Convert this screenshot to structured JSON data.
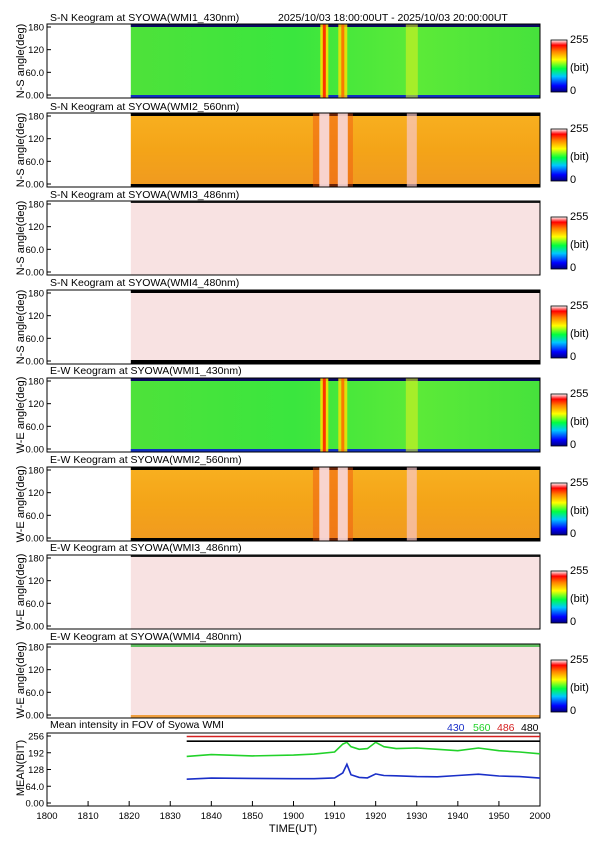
{
  "header": {
    "time_range": "2025/10/03 18:00:00UT - 2025/10/03 20:00:00UT"
  },
  "panels": [
    {
      "title": "S-N Keogram at SYOWA(WMI1_430nm)",
      "ylabel": "N-S angle(deg)",
      "style": "green"
    },
    {
      "title": "S-N Keogram at SYOWA(WMI2_560nm)",
      "ylabel": "N-S angle(deg)",
      "style": "orange"
    },
    {
      "title": "S-N Keogram at SYOWA(WMI3_486nm)",
      "ylabel": "N-S angle(deg)",
      "style": "pale"
    },
    {
      "title": "S-N Keogram at SYOWA(WMI4_480nm)",
      "ylabel": "N-S angle(deg)",
      "style": "pale-dark"
    },
    {
      "title": "E-W Keogram at SYOWA(WMI1_430nm)",
      "ylabel": "W-E angle(deg)",
      "style": "green"
    },
    {
      "title": "E-W Keogram at SYOWA(WMI2_560nm)",
      "ylabel": "W-E angle(deg)",
      "style": "orange"
    },
    {
      "title": "E-W Keogram at SYOWA(WMI3_486nm)",
      "ylabel": "W-E angle(deg)",
      "style": "pale"
    },
    {
      "title": "E-W Keogram at SYOWA(WMI4_480nm)",
      "ylabel": "W-E angle(deg)",
      "style": "pale-edge"
    }
  ],
  "keogram_yticks": [
    "180",
    "120",
    "60.0",
    "0.00"
  ],
  "colorbar": {
    "max_label": "255",
    "unit_label": "(bit)",
    "min_label": "0"
  },
  "colors": {
    "blue_430": "#1a2fc8",
    "green_560": "#22d22a",
    "red_486": "#d62020",
    "black_480": "#000000"
  },
  "chart_data": {
    "type": "line",
    "title": "Mean intensity in FOV of Syowa WMI",
    "ylabel": "MEAN(BIT)",
    "xlabel": "TIME(UT)",
    "xlim": [
      1800,
      2000
    ],
    "ylim": [
      0,
      256
    ],
    "xticks": [
      "1800",
      "1810",
      "1820",
      "1830",
      "1840",
      "1850",
      "1900",
      "1910",
      "1920",
      "1930",
      "1940",
      "1950",
      "2000"
    ],
    "yticks": [
      "256",
      "192",
      "128",
      "64.0",
      "0.00"
    ],
    "data_start": 1834,
    "x": [
      1834,
      1840,
      1850,
      1900,
      1905,
      1910,
      1912,
      1913,
      1914,
      1916,
      1918,
      1920,
      1922,
      1925,
      1930,
      1935,
      1940,
      1945,
      1950,
      1955,
      2000
    ],
    "series": [
      {
        "name": "430",
        "color": "#1a2fc8",
        "values": [
          91,
          95,
          94,
          93,
          93,
          96,
          115,
          148,
          108,
          98,
          96,
          111,
          105,
          104,
          101,
          100,
          105,
          110,
          103,
          101,
          95
        ]
      },
      {
        "name": "560",
        "color": "#22d22a",
        "values": [
          178,
          185,
          180,
          183,
          187,
          195,
          225,
          232,
          215,
          205,
          208,
          232,
          215,
          208,
          210,
          205,
          200,
          210,
          200,
          195,
          188
        ]
      },
      {
        "name": "486",
        "color": "#d62020",
        "values": [
          254,
          254,
          254,
          254,
          254,
          254,
          254,
          254,
          254,
          254,
          254,
          254,
          254,
          254,
          254,
          254,
          254,
          254,
          254,
          254,
          254
        ]
      },
      {
        "name": "480",
        "color": "#000000",
        "values": [
          236,
          236,
          236,
          236,
          236,
          236,
          236,
          236,
          236,
          236,
          236,
          236,
          236,
          236,
          236,
          236,
          236,
          236,
          236,
          236,
          236
        ]
      }
    ]
  }
}
